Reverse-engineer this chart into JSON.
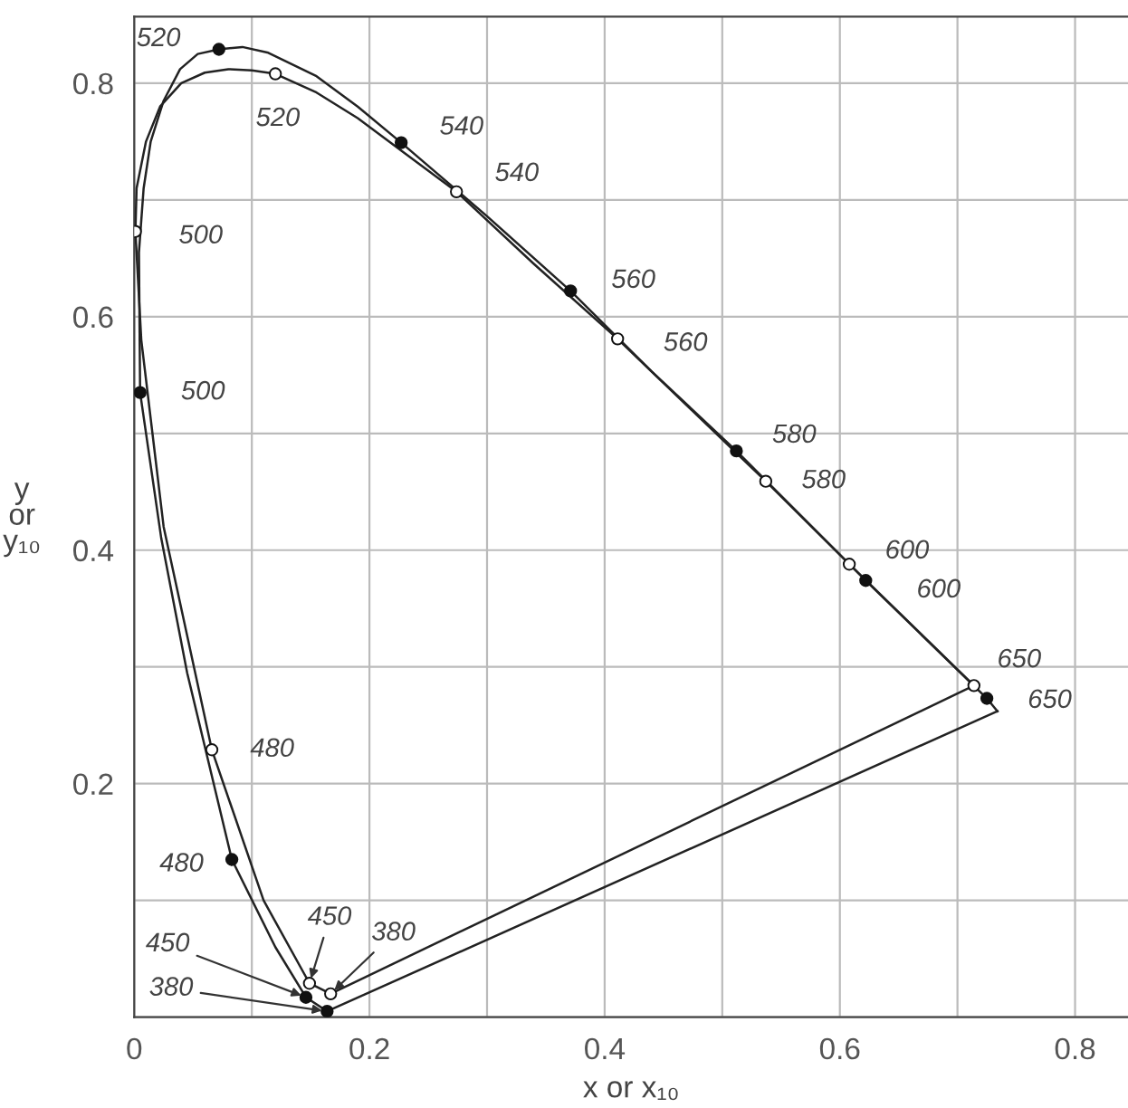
{
  "chart_data": {
    "type": "line",
    "xlabel": "x or x₁₀",
    "ylabel": "y\nor\ny₁₀",
    "xlim": [
      0,
      0.845
    ],
    "ylim": [
      0,
      0.857
    ],
    "xticks": [
      {
        "value": 0,
        "label": "0"
      },
      {
        "value": 0.1,
        "label": null
      },
      0.2,
      {
        "value": 0.3,
        "label": null
      },
      0.4,
      {
        "value": 0.5,
        "label": null
      },
      0.6,
      {
        "value": 0.7,
        "label": null
      },
      0.8
    ],
    "yticks": [
      {
        "value": 0,
        "label": null
      },
      {
        "value": 0.1,
        "label": null
      },
      0.2,
      {
        "value": 0.3,
        "label": null
      },
      0.4,
      {
        "value": 0.5,
        "label": null
      },
      0.6,
      {
        "value": 0.7,
        "label": null
      },
      0.8
    ],
    "grid": true,
    "series": [
      {
        "color": "#222222",
        "x": [
          0.164,
          0.146,
          0.12,
          0.083,
          0.045,
          0.023,
          0.005,
          0.004,
          0.008,
          0.014,
          0.025,
          0.039,
          0.054,
          0.072,
          0.092,
          0.114,
          0.155,
          0.19,
          0.227,
          0.3,
          0.371,
          0.44,
          0.512,
          0.622,
          0.725,
          0.734
        ],
        "values": [
          0.005,
          0.017,
          0.06,
          0.135,
          0.295,
          0.41,
          0.535,
          0.655,
          0.71,
          0.75,
          0.785,
          0.812,
          0.825,
          0.829,
          0.831,
          0.826,
          0.806,
          0.78,
          0.749,
          0.686,
          0.622,
          0.553,
          0.485,
          0.374,
          0.273,
          0.262
        ]
      },
      {
        "color": "#222222",
        "x": [
          0.734,
          0.164
        ],
        "values": [
          0.262,
          0.005
        ]
      },
      {
        "color": "#222222",
        "x": [
          0.167,
          0.149,
          0.11,
          0.066,
          0.025,
          0.006,
          0.001,
          0.002,
          0.01,
          0.022,
          0.04,
          0.06,
          0.08,
          0.1,
          0.12,
          0.155,
          0.19,
          0.23,
          0.274,
          0.34,
          0.411,
          0.537,
          0.608,
          0.714
        ],
        "values": [
          0.02,
          0.029,
          0.1,
          0.229,
          0.42,
          0.58,
          0.673,
          0.71,
          0.75,
          0.78,
          0.8,
          0.809,
          0.812,
          0.811,
          0.808,
          0.792,
          0.77,
          0.74,
          0.707,
          0.645,
          0.581,
          0.459,
          0.388,
          0.284
        ]
      },
      {
        "color": "#222222",
        "x": [
          0.714,
          0.167
        ],
        "values": [
          0.284,
          0.02
        ]
      },
      {
        "type": "scatter",
        "color": "#111111",
        "marker": "circle",
        "x": [
          0.164,
          0.146,
          0.083,
          0.005,
          0.072,
          0.227,
          0.371,
          0.512,
          0.622,
          0.725
        ],
        "values": [
          0.005,
          0.017,
          0.135,
          0.535,
          0.829,
          0.749,
          0.622,
          0.485,
          0.374,
          0.273
        ]
      },
      {
        "type": "scatter",
        "color": "#ffffff",
        "marker": "circle",
        "x": [
          0.167,
          0.149,
          0.066,
          0.001,
          0.12,
          0.274,
          0.411,
          0.537,
          0.608,
          0.714
        ],
        "values": [
          0.02,
          0.029,
          0.229,
          0.673,
          0.808,
          0.707,
          0.581,
          0.459,
          0.388,
          0.284
        ]
      }
    ],
    "annotations": [
      {
        "text": "380",
        "x": 0.167,
        "y": 0.02
      },
      {
        "text": "450",
        "x": 0.146,
        "y": 0.017
      },
      {
        "text": "480",
        "x": 0.083,
        "y": 0.135
      },
      {
        "text": "500",
        "x": 0.005,
        "y": 0.535
      },
      {
        "text": "520",
        "x": 0.072,
        "y": 0.829
      },
      {
        "text": "540",
        "x": 0.227,
        "y": 0.749
      },
      {
        "text": "560",
        "x": 0.371,
        "y": 0.622
      },
      {
        "text": "580",
        "x": 0.512,
        "y": 0.485
      },
      {
        "text": "600",
        "x": 0.622,
        "y": 0.374
      },
      {
        "text": "650",
        "x": 0.725,
        "y": 0.273
      },
      {
        "text": "380",
        "x": 0.164,
        "y": 0.005
      },
      {
        "text": "450",
        "x": 0.149,
        "y": 0.029
      },
      {
        "text": "480",
        "x": 0.066,
        "y": 0.229
      },
      {
        "text": "500",
        "x": 0.001,
        "y": 0.673
      },
      {
        "text": "520",
        "x": 0.12,
        "y": 0.808
      },
      {
        "text": "540",
        "x": 0.274,
        "y": 0.707
      },
      {
        "text": "560",
        "x": 0.411,
        "y": 0.581
      },
      {
        "text": "580",
        "x": 0.537,
        "y": 0.459
      },
      {
        "text": "600",
        "x": 0.608,
        "y": 0.388
      },
      {
        "text": "650",
        "x": 0.714,
        "y": 0.284
      }
    ]
  }
}
